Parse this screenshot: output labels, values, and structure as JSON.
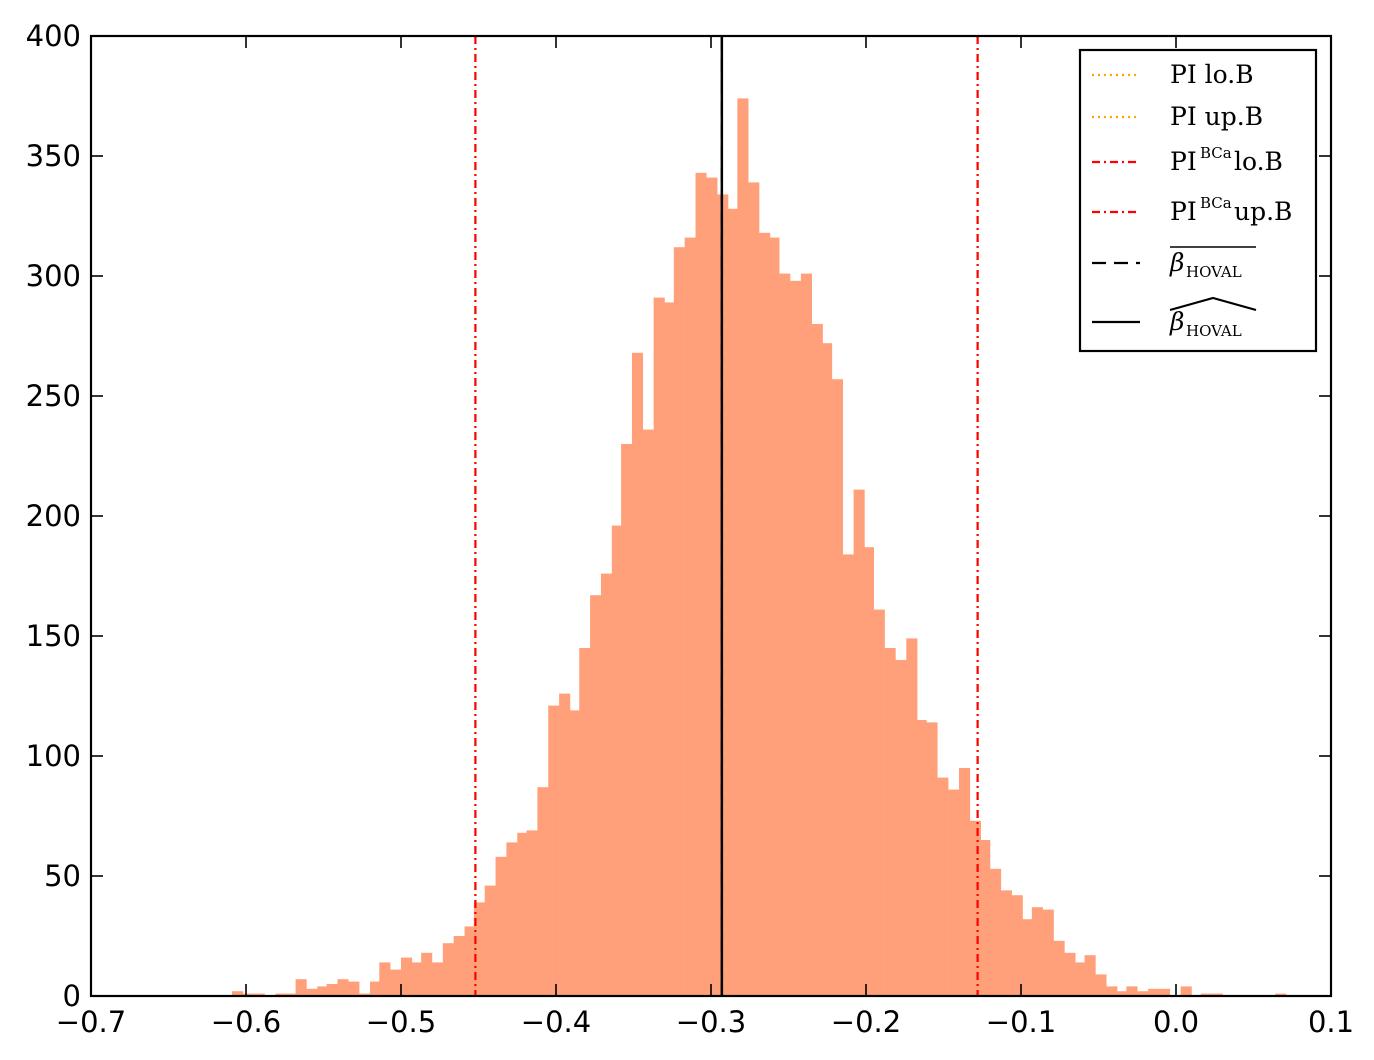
{
  "chart_data": {
    "type": "bar",
    "subtype": "histogram",
    "bar_color": "#FFA07A",
    "bin_width": 0.00678,
    "xlim": [
      -0.7,
      0.1
    ],
    "ylim": [
      0,
      400
    ],
    "x_ticks": [
      "−0.7",
      "−0.6",
      "−0.5",
      "−0.4",
      "−0.3",
      "−0.2",
      "−0.1",
      "0.0",
      "0.1"
    ],
    "x_tick_values": [
      -0.7,
      -0.6,
      -0.5,
      -0.4,
      -0.3,
      -0.2,
      -0.1,
      0.0,
      0.1
    ],
    "y_ticks": [
      "0",
      "50",
      "100",
      "150",
      "200",
      "250",
      "300",
      "350",
      "400"
    ],
    "y_tick_values": [
      0,
      50,
      100,
      150,
      200,
      250,
      300,
      350,
      400
    ],
    "bins": [
      {
        "x": -0.609,
        "y": 2
      },
      {
        "x": -0.602,
        "y": 1
      },
      {
        "x": -0.595,
        "y": 1
      },
      {
        "x": -0.581,
        "y": 1
      },
      {
        "x": -0.575,
        "y": 1
      },
      {
        "x": -0.568,
        "y": 7
      },
      {
        "x": -0.561,
        "y": 3
      },
      {
        "x": -0.554,
        "y": 4
      },
      {
        "x": -0.548,
        "y": 5
      },
      {
        "x": -0.541,
        "y": 7
      },
      {
        "x": -0.534,
        "y": 6
      },
      {
        "x": -0.527,
        "y": 1
      },
      {
        "x": -0.52,
        "y": 6
      },
      {
        "x": -0.514,
        "y": 14
      },
      {
        "x": -0.507,
        "y": 11
      },
      {
        "x": -0.5,
        "y": 16
      },
      {
        "x": -0.493,
        "y": 14
      },
      {
        "x": -0.487,
        "y": 18
      },
      {
        "x": -0.48,
        "y": 14
      },
      {
        "x": -0.473,
        "y": 22
      },
      {
        "x": -0.466,
        "y": 25
      },
      {
        "x": -0.459,
        "y": 29
      },
      {
        "x": -0.453,
        "y": 39
      },
      {
        "x": -0.446,
        "y": 46
      },
      {
        "x": -0.439,
        "y": 58
      },
      {
        "x": -0.432,
        "y": 64
      },
      {
        "x": -0.425,
        "y": 68
      },
      {
        "x": -0.419,
        "y": 69
      },
      {
        "x": -0.412,
        "y": 87
      },
      {
        "x": -0.405,
        "y": 121
      },
      {
        "x": -0.398,
        "y": 126
      },
      {
        "x": -0.392,
        "y": 119
      },
      {
        "x": -0.385,
        "y": 145
      },
      {
        "x": -0.378,
        "y": 167
      },
      {
        "x": -0.371,
        "y": 176
      },
      {
        "x": -0.364,
        "y": 196
      },
      {
        "x": -0.358,
        "y": 230
      },
      {
        "x": -0.351,
        "y": 268
      },
      {
        "x": -0.344,
        "y": 236
      },
      {
        "x": -0.337,
        "y": 291
      },
      {
        "x": -0.33,
        "y": 289
      },
      {
        "x": -0.324,
        "y": 312
      },
      {
        "x": -0.317,
        "y": 316
      },
      {
        "x": -0.31,
        "y": 343
      },
      {
        "x": -0.303,
        "y": 341
      },
      {
        "x": -0.296,
        "y": 334
      },
      {
        "x": -0.29,
        "y": 328
      },
      {
        "x": -0.283,
        "y": 374
      },
      {
        "x": -0.276,
        "y": 339
      },
      {
        "x": -0.269,
        "y": 318
      },
      {
        "x": -0.263,
        "y": 316
      },
      {
        "x": -0.256,
        "y": 301
      },
      {
        "x": -0.249,
        "y": 298
      },
      {
        "x": -0.242,
        "y": 301
      },
      {
        "x": -0.235,
        "y": 280
      },
      {
        "x": -0.229,
        "y": 272
      },
      {
        "x": -0.222,
        "y": 257
      },
      {
        "x": -0.215,
        "y": 184
      },
      {
        "x": -0.208,
        "y": 211
      },
      {
        "x": -0.202,
        "y": 187
      },
      {
        "x": -0.195,
        "y": 161
      },
      {
        "x": -0.188,
        "y": 145
      },
      {
        "x": -0.181,
        "y": 140
      },
      {
        "x": -0.174,
        "y": 149
      },
      {
        "x": -0.168,
        "y": 115
      },
      {
        "x": -0.161,
        "y": 114
      },
      {
        "x": -0.154,
        "y": 91
      },
      {
        "x": -0.147,
        "y": 86
      },
      {
        "x": -0.14,
        "y": 95
      },
      {
        "x": -0.133,
        "y": 73
      },
      {
        "x": -0.127,
        "y": 65
      },
      {
        "x": -0.12,
        "y": 53
      },
      {
        "x": -0.113,
        "y": 44
      },
      {
        "x": -0.106,
        "y": 42
      },
      {
        "x": -0.099,
        "y": 32
      },
      {
        "x": -0.093,
        "y": 37
      },
      {
        "x": -0.086,
        "y": 36
      },
      {
        "x": -0.079,
        "y": 23
      },
      {
        "x": -0.072,
        "y": 18
      },
      {
        "x": -0.066,
        "y": 14
      },
      {
        "x": -0.059,
        "y": 17
      },
      {
        "x": -0.052,
        "y": 9
      },
      {
        "x": -0.045,
        "y": 4
      },
      {
        "x": -0.038,
        "y": 2
      },
      {
        "x": -0.032,
        "y": 4
      },
      {
        "x": -0.025,
        "y": 2
      },
      {
        "x": -0.018,
        "y": 3
      },
      {
        "x": -0.011,
        "y": 3
      },
      {
        "x": 0.003,
        "y": 4
      },
      {
        "x": 0.016,
        "y": 1
      },
      {
        "x": 0.023,
        "y": 1
      },
      {
        "x": 0.064,
        "y": 1
      }
    ],
    "vlines": [
      {
        "name": "PI lo.B",
        "x": -0.452,
        "color": "#FFA500",
        "style": "dotted"
      },
      {
        "name": "PI up.B",
        "x": -0.128,
        "color": "#FFA500",
        "style": "dotted"
      },
      {
        "name": "PI^BCa lo.B",
        "x": -0.452,
        "color": "#FF0000",
        "style": "dashdot"
      },
      {
        "name": "PI^BCa up.B",
        "x": -0.128,
        "color": "#FF0000",
        "style": "dashdot"
      },
      {
        "name": "beta_HOVAL overline",
        "x": -0.293,
        "color": "#000000",
        "style": "dashed"
      },
      {
        "name": "beta_HOVAL widehat",
        "x": -0.293,
        "color": "#000000",
        "style": "solid"
      }
    ],
    "legend": {
      "placement": "top-right",
      "entries": [
        {
          "text": "PI lo.B",
          "color": "#FFA500",
          "style": "dotted"
        },
        {
          "text": "PI up.B",
          "color": "#FFA500",
          "style": "dotted"
        },
        {
          "text": "PI",
          "sup": "BCa",
          "after": " lo.B",
          "color": "#FF0000",
          "style": "dashdot"
        },
        {
          "text": "PI",
          "sup": "BCa",
          "after": " up.B",
          "color": "#FF0000",
          "style": "dashdot"
        },
        {
          "symbol": "β",
          "sub": "HOVAL",
          "accent": "overline",
          "color": "#000000",
          "style": "dashed"
        },
        {
          "symbol": "β",
          "sub": "HOVAL",
          "accent": "widehat",
          "color": "#000000",
          "style": "solid"
        }
      ]
    },
    "grid": false
  }
}
